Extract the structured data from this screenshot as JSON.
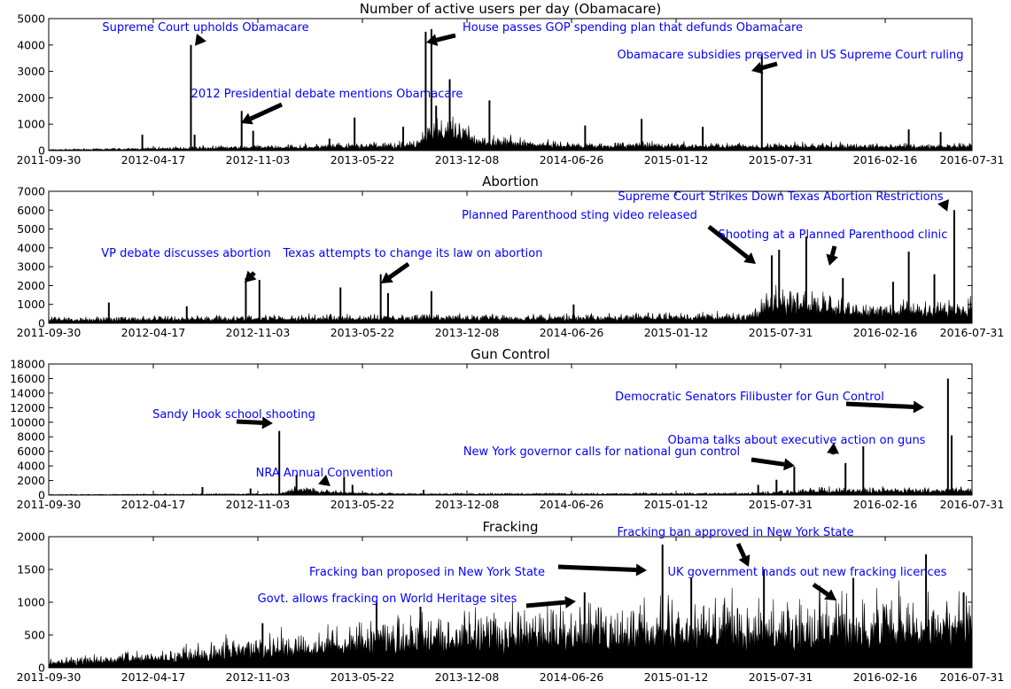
{
  "figure": {
    "x_tick_labels": [
      "2011-09-30",
      "2012-04-17",
      "2012-11-03",
      "2013-05-22",
      "2013-12-08",
      "2014-06-26",
      "2015-01-12",
      "2015-07-31",
      "2016-02-16",
      "2016-07-31"
    ]
  },
  "chart_data": [
    {
      "type": "area",
      "title": "Number of active users per day (Obamacare)",
      "x_range": [
        "2011-09-30",
        "2016-07-31"
      ],
      "ylim": [
        0,
        5000
      ],
      "yticks": [
        0,
        1000,
        2000,
        3000,
        4000,
        5000
      ],
      "baseline": [
        {
          "date": "2011-09-30",
          "value": 30
        },
        {
          "date": "2012-03-01",
          "value": 60
        },
        {
          "date": "2012-06-29",
          "value": 100
        },
        {
          "date": "2013-03-01",
          "value": 150
        },
        {
          "date": "2013-09-01",
          "value": 220
        },
        {
          "date": "2013-10-01",
          "value": 900
        },
        {
          "date": "2013-11-15",
          "value": 700
        },
        {
          "date": "2014-01-15",
          "value": 350
        },
        {
          "date": "2014-06-26",
          "value": 200
        },
        {
          "date": "2016-07-31",
          "value": 160
        }
      ],
      "spikes": [
        {
          "date": "2012-03-27",
          "value": 600
        },
        {
          "date": "2012-06-28",
          "value": 4000
        },
        {
          "date": "2012-07-05",
          "value": 600
        },
        {
          "date": "2012-10-03",
          "value": 1500
        },
        {
          "date": "2012-10-25",
          "value": 750
        },
        {
          "date": "2013-03-20",
          "value": 450
        },
        {
          "date": "2013-05-07",
          "value": 1250
        },
        {
          "date": "2013-08-08",
          "value": 900
        },
        {
          "date": "2013-09-20",
          "value": 4500
        },
        {
          "date": "2013-10-01",
          "value": 4600
        },
        {
          "date": "2013-10-10",
          "value": 1700
        },
        {
          "date": "2013-11-05",
          "value": 2700
        },
        {
          "date": "2014-01-20",
          "value": 1900
        },
        {
          "date": "2014-07-22",
          "value": 950
        },
        {
          "date": "2014-11-07",
          "value": 1200
        },
        {
          "date": "2015-03-04",
          "value": 900
        },
        {
          "date": "2015-06-25",
          "value": 3600
        },
        {
          "date": "2016-04-01",
          "value": 800
        },
        {
          "date": "2016-06-01",
          "value": 700
        }
      ],
      "annotations": [
        {
          "text": "Supreme Court upholds Obamacare",
          "date": "2012-06-28",
          "value": 4100
        },
        {
          "text": "2012 Presidential debate mentions Obamacare",
          "date": "2012-10-03",
          "value": 1000
        },
        {
          "text": "House passes GOP spending plan that defunds Obamacare",
          "date": "2013-09-20",
          "value": 4200
        },
        {
          "text": "Obamacare subsidies preserved in US Supreme Court ruling",
          "date": "2015-06-25",
          "value": 3000
        }
      ]
    },
    {
      "type": "area",
      "title": "Abortion",
      "x_range": [
        "2011-09-30",
        "2016-07-31"
      ],
      "ylim": [
        0,
        7000
      ],
      "yticks": [
        0,
        1000,
        2000,
        3000,
        4000,
        5000,
        6000,
        7000
      ],
      "baseline": [
        {
          "date": "2011-09-30",
          "value": 200
        },
        {
          "date": "2012-06-01",
          "value": 250
        },
        {
          "date": "2013-06-01",
          "value": 300
        },
        {
          "date": "2014-06-01",
          "value": 300
        },
        {
          "date": "2015-06-01",
          "value": 350
        },
        {
          "date": "2015-07-15",
          "value": 1200
        },
        {
          "date": "2016-01-01",
          "value": 700
        },
        {
          "date": "2016-07-31",
          "value": 800
        }
      ],
      "spikes": [
        {
          "date": "2012-01-23",
          "value": 1100
        },
        {
          "date": "2012-06-20",
          "value": 900
        },
        {
          "date": "2012-10-11",
          "value": 2400
        },
        {
          "date": "2012-11-06",
          "value": 2300
        },
        {
          "date": "2013-04-10",
          "value": 1900
        },
        {
          "date": "2013-06-26",
          "value": 2600
        },
        {
          "date": "2013-07-10",
          "value": 1600
        },
        {
          "date": "2013-10-01",
          "value": 1700
        },
        {
          "date": "2014-06-30",
          "value": 1000
        },
        {
          "date": "2015-07-14",
          "value": 3600
        },
        {
          "date": "2015-07-28",
          "value": 3900
        },
        {
          "date": "2015-09-18",
          "value": 4600
        },
        {
          "date": "2015-11-27",
          "value": 2400
        },
        {
          "date": "2016-03-02",
          "value": 2200
        },
        {
          "date": "2016-04-01",
          "value": 3800
        },
        {
          "date": "2016-05-20",
          "value": 2600
        },
        {
          "date": "2016-06-27",
          "value": 6000
        }
      ],
      "annotations": [
        {
          "text": "VP debate discusses abortion",
          "date": "2012-10-11",
          "value": 2200
        },
        {
          "text": "Texas attempts to change its law on abortion",
          "date": "2013-06-26",
          "value": 2100
        },
        {
          "text": "Planned Parenthood sting video released",
          "date": "2015-07-14",
          "value": 3300
        },
        {
          "text": "Shooting at a Planned Parenthood clinic",
          "date": "2015-11-27",
          "value": 3200
        },
        {
          "text": "Supreme Court Strikes Down Texas Abortion Restrictions",
          "date": "2016-06-27",
          "value": 6300
        }
      ]
    },
    {
      "type": "area",
      "title": "Gun Control",
      "x_range": [
        "2011-09-30",
        "2016-07-31"
      ],
      "ylim": [
        0,
        18000
      ],
      "yticks": [
        0,
        2000,
        4000,
        6000,
        8000,
        10000,
        12000,
        14000,
        16000,
        18000
      ],
      "baseline": [
        {
          "date": "2011-09-30",
          "value": 60
        },
        {
          "date": "2012-12-14",
          "value": 150
        },
        {
          "date": "2013-01-15",
          "value": 800
        },
        {
          "date": "2013-05-01",
          "value": 300
        },
        {
          "date": "2013-09-01",
          "value": 150
        },
        {
          "date": "2015-06-01",
          "value": 200
        },
        {
          "date": "2015-10-01",
          "value": 600
        },
        {
          "date": "2016-06-12",
          "value": 600
        },
        {
          "date": "2016-07-31",
          "value": 700
        }
      ],
      "spikes": [
        {
          "date": "2012-07-20",
          "value": 1100
        },
        {
          "date": "2012-10-20",
          "value": 900
        },
        {
          "date": "2012-12-14",
          "value": 8800
        },
        {
          "date": "2013-01-16",
          "value": 2800
        },
        {
          "date": "2013-04-17",
          "value": 2500
        },
        {
          "date": "2013-05-03",
          "value": 1400
        },
        {
          "date": "2013-09-16",
          "value": 700
        },
        {
          "date": "2015-06-18",
          "value": 1400
        },
        {
          "date": "2015-07-23",
          "value": 2100
        },
        {
          "date": "2015-08-26",
          "value": 3900
        },
        {
          "date": "2015-12-02",
          "value": 4400
        },
        {
          "date": "2016-01-05",
          "value": 6700
        },
        {
          "date": "2016-06-15",
          "value": 16000
        },
        {
          "date": "2016-06-22",
          "value": 8200
        }
      ],
      "annotations": [
        {
          "text": "Sandy Hook school shooting",
          "date": "2012-12-14",
          "value": 9500
        },
        {
          "text": "NRA Annual Convention",
          "date": "2013-05-03",
          "value": 1500
        },
        {
          "text": "New York governor calls for national gun control",
          "date": "2015-08-26",
          "value": 4100
        },
        {
          "text": "Obama talks about executive action on guns",
          "date": "2016-01-05",
          "value": 5000
        },
        {
          "text": "Democratic Senators Filibuster for Gun Control",
          "date": "2016-06-15",
          "value": 11800
        }
      ]
    },
    {
      "type": "area",
      "title": "Fracking",
      "x_range": [
        "2011-09-30",
        "2016-07-31"
      ],
      "ylim": [
        0,
        2000
      ],
      "yticks": [
        0,
        500,
        1000,
        1500,
        2000
      ],
      "baseline": [
        {
          "date": "2011-09-30",
          "value": 80
        },
        {
          "date": "2012-04-17",
          "value": 170
        },
        {
          "date": "2012-11-03",
          "value": 300
        },
        {
          "date": "2013-05-22",
          "value": 450
        },
        {
          "date": "2013-12-08",
          "value": 520
        },
        {
          "date": "2014-06-26",
          "value": 580
        },
        {
          "date": "2015-01-12",
          "value": 620
        },
        {
          "date": "2015-07-31",
          "value": 650
        },
        {
          "date": "2016-02-16",
          "value": 680
        },
        {
          "date": "2016-07-31",
          "value": 720
        }
      ],
      "spikes": [
        {
          "date": "2012-11-12",
          "value": 680
        },
        {
          "date": "2013-06-18",
          "value": 1000
        },
        {
          "date": "2013-09-10",
          "value": 930
        },
        {
          "date": "2014-07-21",
          "value": 1150
        },
        {
          "date": "2014-12-17",
          "value": 1880
        },
        {
          "date": "2015-02-10",
          "value": 1380
        },
        {
          "date": "2015-06-29",
          "value": 1500
        },
        {
          "date": "2015-12-17",
          "value": 1370
        },
        {
          "date": "2016-05-04",
          "value": 1730
        },
        {
          "date": "2016-07-15",
          "value": 1150
        }
      ],
      "annotations": [
        {
          "text": "Govt. allows fracking on World Heritage sites",
          "date": "2014-07-21",
          "value": 1000
        },
        {
          "text": "Fracking ban proposed in New York State",
          "date": "2014-12-17",
          "value": 1450
        },
        {
          "text": "Fracking ban approved in New York State",
          "date": "2015-06-29",
          "value": 1520
        },
        {
          "text": "UK government hands out new fracking licences",
          "date": "2015-12-17",
          "value": 1000
        }
      ]
    }
  ]
}
